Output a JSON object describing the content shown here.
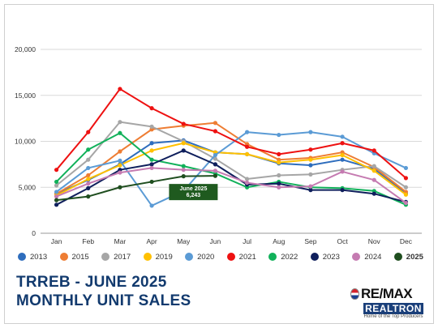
{
  "chart_data": {
    "type": "line",
    "categories": [
      "Jan",
      "Feb",
      "Mar",
      "Apr",
      "May",
      "Jun",
      "Jul",
      "Aug",
      "Sep",
      "Oct",
      "Nov",
      "Dec"
    ],
    "ylim": [
      0,
      20000
    ],
    "yticks": [
      "20,000",
      "15,000",
      "10,000",
      "5,000",
      "0"
    ],
    "grid": "horizontal",
    "legend_placement": "bottom",
    "series": [
      {
        "name": "2013",
        "color": "#2e6dbd",
        "values": [
          4300,
          5800,
          7500,
          9800,
          10100,
          8800,
          8600,
          7600,
          7400,
          8000,
          7000,
          4300
        ]
      },
      {
        "name": "2015",
        "color": "#ee7d33",
        "values": [
          4300,
          6300,
          8900,
          11300,
          11700,
          12000,
          9700,
          8000,
          8200,
          8800,
          7200,
          4500
        ]
      },
      {
        "name": "2017",
        "color": "#a6a6a6",
        "values": [
          5200,
          8000,
          12100,
          11600,
          10000,
          8100,
          5900,
          6300,
          6400,
          6900,
          7300,
          5000
        ]
      },
      {
        "name": "2019",
        "color": "#ffc000",
        "values": [
          4100,
          5900,
          7400,
          9000,
          9800,
          8800,
          8600,
          7700,
          8000,
          8500,
          6800,
          4200
        ]
      },
      {
        "name": "2020",
        "color": "#5b9bd5",
        "values": [
          4500,
          7100,
          7900,
          3000,
          4600,
          8500,
          11000,
          10700,
          11000,
          10500,
          8700,
          7100
        ]
      },
      {
        "name": "2021",
        "color": "#ee1111",
        "values": [
          6900,
          11000,
          15700,
          13600,
          11900,
          11100,
          9400,
          8600,
          9100,
          9800,
          9000,
          6000
        ]
      },
      {
        "name": "2022",
        "color": "#11b15a",
        "values": [
          5600,
          9100,
          10900,
          8000,
          7300,
          6500,
          5000,
          5600,
          5000,
          4900,
          4600,
          3100
        ]
      },
      {
        "name": "2023",
        "color": "#0f1f5c",
        "values": [
          3100,
          4900,
          6900,
          7500,
          9000,
          7500,
          5300,
          5400,
          4700,
          4700,
          4300,
          3400
        ]
      },
      {
        "name": "2024",
        "color": "#c57bb1",
        "values": [
          4000,
          5400,
          6600,
          7100,
          6900,
          6800,
          5500,
          5000,
          5100,
          6700,
          5800,
          3300
        ]
      },
      {
        "name": "2025",
        "color": "#1f4e1f",
        "values": [
          3600,
          4000,
          5000,
          5600,
          6200,
          6243,
          null,
          null,
          null,
          null,
          null,
          null
        ]
      }
    ],
    "annotation": {
      "series": "2025",
      "index": 5,
      "lines": [
        "June 2025",
        "6,243"
      ]
    }
  },
  "title": {
    "line1": "TRREB - JUNE 2025",
    "line2": "MONTHLY UNIT SALES"
  },
  "logo": {
    "top": "RE/MAX",
    "bar": "REALTRON",
    "sub": "Home of the Top Producers"
  }
}
